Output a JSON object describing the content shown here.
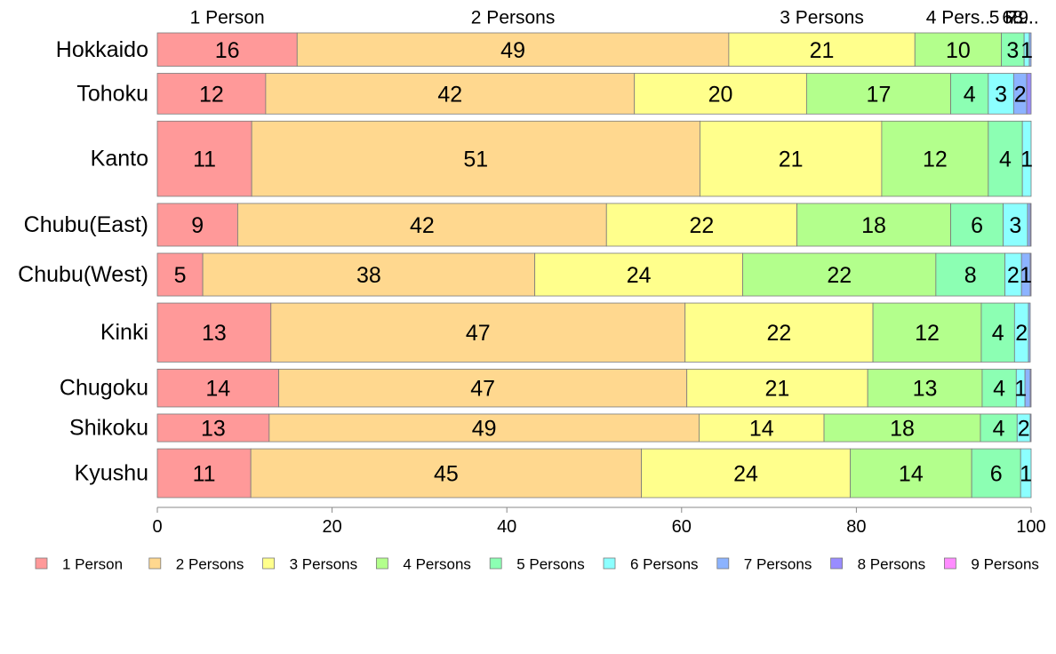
{
  "chart_data": {
    "type": "bar",
    "orientation": "horizontal",
    "stacked": "percent",
    "categories": [
      "Hokkaido",
      "Tohoku",
      "Kanto",
      "Chubu(East)",
      "Chubu(West)",
      "Kinki",
      "Chugoku",
      "Shikoku",
      "Kyushu"
    ],
    "category_weight": [
      0.82,
      1.0,
      1.85,
      1.05,
      1.05,
      1.45,
      0.93,
      0.68,
      1.2
    ],
    "series": [
      {
        "name": "1 Person",
        "color": "#ff9999",
        "values": [
          16.0,
          12.4,
          10.8,
          9.2,
          5.2,
          13.0,
          13.9,
          12.8,
          10.7
        ]
      },
      {
        "name": "2 Persons",
        "color": "#ffd88f",
        "values": [
          49.4,
          42.2,
          51.3,
          42.2,
          38.0,
          47.4,
          46.7,
          49.2,
          44.7
        ]
      },
      {
        "name": "3 Persons",
        "color": "#ffff8c",
        "values": [
          21.3,
          19.7,
          20.8,
          21.8,
          23.8,
          21.5,
          20.7,
          14.3,
          23.9
        ]
      },
      {
        "name": "4 Persons",
        "color": "#b3ff8c",
        "values": [
          9.9,
          16.5,
          12.2,
          17.6,
          22.1,
          12.4,
          13.1,
          17.9,
          13.9
        ]
      },
      {
        "name": "5 Persons",
        "color": "#8cffb3",
        "values": [
          2.6,
          4.3,
          3.9,
          6.0,
          7.9,
          3.8,
          3.9,
          4.2,
          5.6
        ]
      },
      {
        "name": "6 Persons",
        "color": "#8cffff",
        "values": [
          0.6,
          2.9,
          1.0,
          2.8,
          1.9,
          1.6,
          1.0,
          1.5,
          1.2
        ]
      },
      {
        "name": "7 Persons",
        "color": "#8cb3ff",
        "values": [
          0.2,
          1.5,
          0.0,
          0.3,
          1.0,
          0.2,
          0.6,
          0.0,
          0.0
        ]
      },
      {
        "name": "8 Persons",
        "color": "#998cff",
        "values": [
          0.0,
          0.5,
          0.0,
          0.1,
          0.1,
          0.0,
          0.1,
          0.1,
          0.0
        ]
      },
      {
        "name": "9 Persons",
        "color": "#ff8cff",
        "values": [
          0.0,
          0.0,
          0.0,
          0.0,
          0.0,
          0.0,
          0.0,
          0.0,
          0.0
        ]
      }
    ],
    "segment_labels": [
      [
        "16",
        "49",
        "21",
        "10",
        "3",
        "1",
        "",
        "",
        ""
      ],
      [
        "12",
        "42",
        "20",
        "17",
        "4",
        "3",
        "2",
        "",
        ""
      ],
      [
        "11",
        "51",
        "21",
        "12",
        "4",
        "1",
        "",
        "",
        ""
      ],
      [
        "9",
        "42",
        "22",
        "18",
        "6",
        "3",
        "",
        "",
        ""
      ],
      [
        "5",
        "38",
        "24",
        "22",
        "8",
        "2",
        "1",
        "",
        ""
      ],
      [
        "13",
        "47",
        "22",
        "12",
        "4",
        "2",
        "",
        "",
        ""
      ],
      [
        "14",
        "47",
        "21",
        "13",
        "4",
        "1",
        "",
        "",
        ""
      ],
      [
        "13",
        "49",
        "14",
        "18",
        "4",
        "2",
        "",
        "",
        ""
      ],
      [
        "11",
        "45",
        "24",
        "14",
        "6",
        "1",
        "",
        "",
        ""
      ]
    ],
    "top_labels": [
      "1 Person",
      "2 Persons",
      "3 Persons",
      "4 Pers..",
      "5 P..",
      "6..",
      "7..",
      "8..",
      "9.."
    ],
    "xlim": [
      0,
      100
    ],
    "xticks": [
      "0",
      "20",
      "40",
      "60",
      "80",
      "100"
    ],
    "xlabel": "",
    "ylabel": "",
    "title": "",
    "grid": false,
    "legend_position": "bottom"
  }
}
